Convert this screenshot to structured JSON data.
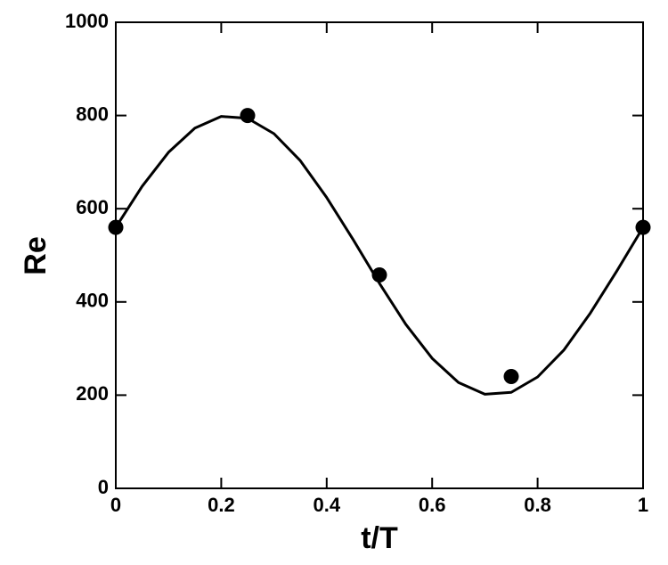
{
  "chart_data": {
    "type": "line",
    "xlabel": "t/T",
    "ylabel": "Re",
    "xlim": [
      0,
      1
    ],
    "xticks": [
      0,
      0.2,
      0.4,
      0.6,
      0.8,
      1
    ],
    "ylim": [
      0,
      1000
    ],
    "yticks": [
      0,
      200,
      400,
      600,
      800,
      1000
    ],
    "grid": false,
    "series": [
      {
        "mode": "line",
        "color": "#000000",
        "x": [
          0,
          0.05,
          0.1,
          0.15,
          0.2,
          0.25,
          0.3,
          0.35,
          0.4,
          0.45,
          0.5,
          0.55,
          0.6,
          0.65,
          0.7,
          0.75,
          0.8,
          0.85,
          0.9,
          0.95,
          1
        ],
        "values": [
          560,
          648,
          721,
          773,
          798,
          794,
          761,
          703,
          624,
          534,
          440,
          352,
          279,
          227,
          202,
          206,
          239,
          297,
          376,
          466,
          560
        ]
      },
      {
        "mode": "markers",
        "color": "#000000",
        "x": [
          0,
          0.25,
          0.5,
          0.75,
          1
        ],
        "values": [
          560,
          800,
          458,
          240,
          560
        ]
      }
    ]
  }
}
